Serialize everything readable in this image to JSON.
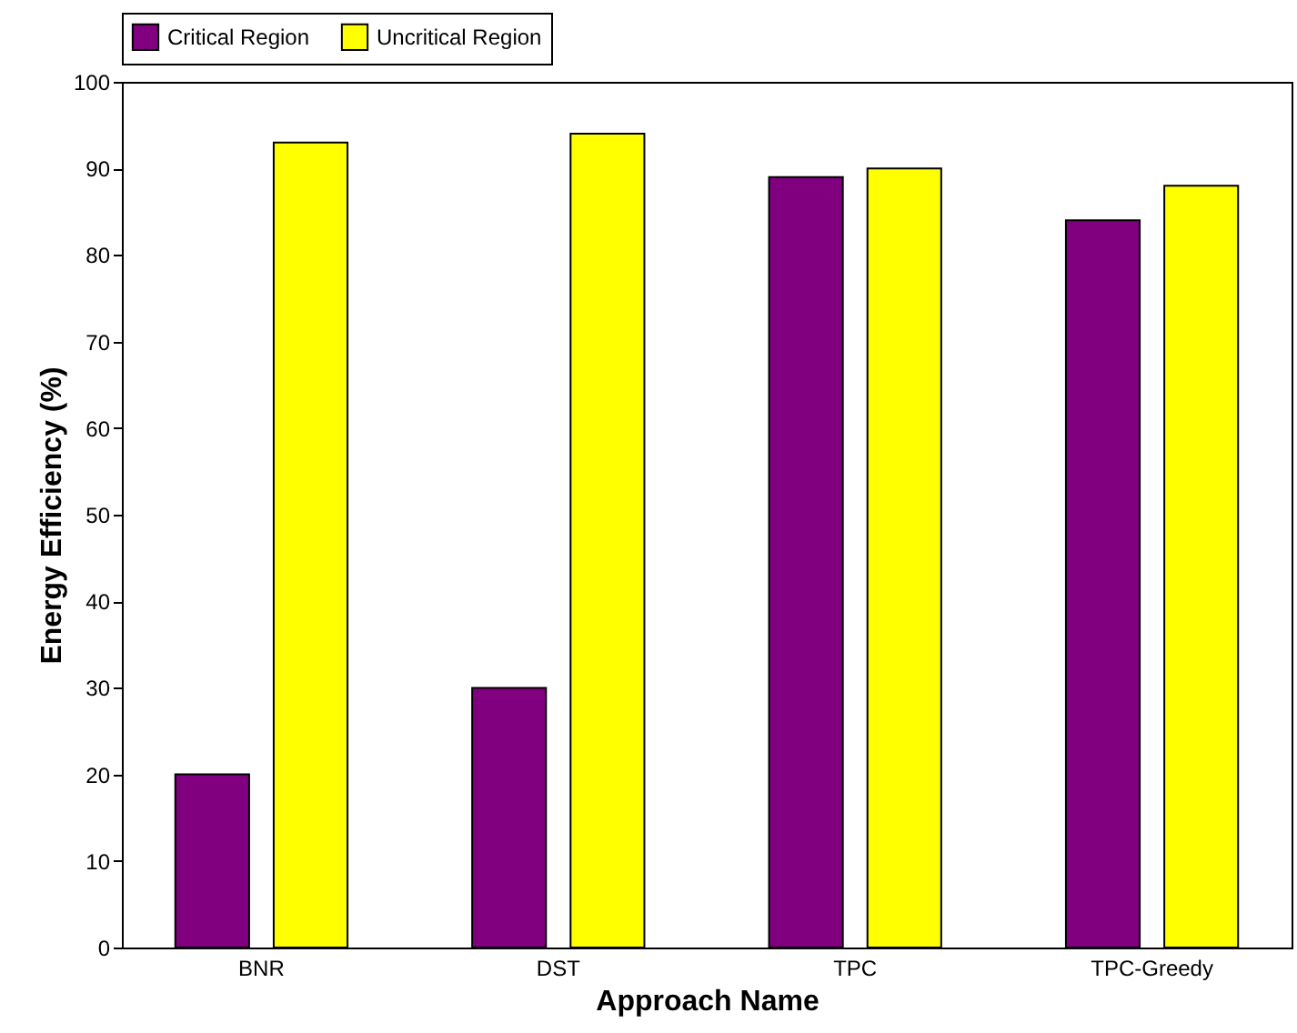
{
  "chart_data": {
    "type": "bar",
    "xlabel": "Approach Name",
    "ylabel": "Energy Efficiency (%)",
    "categories": [
      "BNR",
      "DST",
      "TPC",
      "TPC-Greedy"
    ],
    "series": [
      {
        "name": "Critical Region",
        "color": "#800080",
        "values": [
          20,
          30,
          89,
          84
        ]
      },
      {
        "name": "Uncritical Region",
        "color": "#ffff00",
        "values": [
          93,
          94,
          90,
          88
        ]
      }
    ],
    "ylim": [
      0,
      100
    ],
    "yticks": [
      0,
      10,
      20,
      30,
      40,
      50,
      60,
      70,
      80,
      90,
      100
    ],
    "grid": false,
    "legend": "top"
  }
}
